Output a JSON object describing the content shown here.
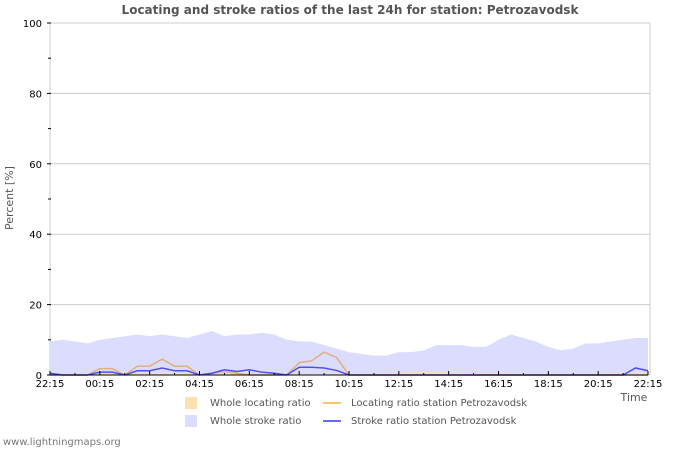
{
  "title": "Locating and stroke ratios of the last 24h for station: Petrozavodsk",
  "footer": "www.lightningmaps.org",
  "colors": {
    "whole_locating_fill": "#ffe0b0",
    "whole_stroke_fill": "#dcdcff",
    "locating_line": "#e0b080",
    "stroke_line": "#5050f0",
    "grid": "#cccccc"
  },
  "legend": [
    {
      "label": "Whole locating ratio",
      "type": "area",
      "color": "#ffe0b0"
    },
    {
      "label": "Locating ratio station Petrozavodsk",
      "type": "line",
      "color": "#f5c870"
    },
    {
      "label": "Whole stroke ratio",
      "type": "area",
      "color": "#dcdcff"
    },
    {
      "label": "Stroke ratio station Petrozavodsk",
      "type": "line",
      "color": "#6a6af0"
    }
  ],
  "chart_data": {
    "type": "area",
    "title": "Locating and stroke ratios of the last 24h for station: Petrozavodsk",
    "xlabel": "Time",
    "ylabel": "Percent   [%]",
    "ylim": [
      0,
      100
    ],
    "yticks": [
      0,
      20,
      40,
      60,
      80,
      100
    ],
    "xticks": [
      "22:15",
      "00:15",
      "02:15",
      "04:15",
      "06:15",
      "08:15",
      "10:15",
      "12:15",
      "14:15",
      "16:15",
      "18:15",
      "20:15",
      "22:15"
    ],
    "grid": true,
    "legend_position": "bottom",
    "x": [
      "22:15",
      "22:45",
      "23:15",
      "23:45",
      "00:15",
      "00:45",
      "01:15",
      "01:45",
      "02:15",
      "02:45",
      "03:15",
      "03:45",
      "04:15",
      "04:45",
      "05:15",
      "05:45",
      "06:15",
      "06:45",
      "07:15",
      "07:45",
      "08:15",
      "08:45",
      "09:15",
      "09:45",
      "10:15",
      "10:45",
      "11:15",
      "11:45",
      "12:15",
      "12:45",
      "13:15",
      "13:45",
      "14:15",
      "14:45",
      "15:15",
      "15:45",
      "16:15",
      "16:45",
      "17:15",
      "17:45",
      "18:15",
      "18:45",
      "19:15",
      "19:45",
      "20:15",
      "20:45",
      "21:15",
      "21:45",
      "22:15"
    ],
    "series": [
      {
        "name": "Whole stroke ratio",
        "values": [
          9.5,
          10,
          9.5,
          9,
          10,
          10.5,
          11,
          11.5,
          11,
          11.5,
          11,
          10.5,
          11.5,
          12.5,
          11,
          11.5,
          11.5,
          12,
          11.5,
          10,
          9.5,
          9.5,
          8.5,
          7.5,
          6.5,
          6,
          5.5,
          5.5,
          6.5,
          6.5,
          7,
          8.5,
          8.5,
          8.5,
          8,
          8,
          10,
          11.5,
          10.5,
          9.5,
          8,
          7,
          7.5,
          9,
          9,
          9.5,
          10,
          10.5,
          10.5
        ]
      },
      {
        "name": "Whole locating ratio",
        "values": [
          0.3,
          0.3,
          0.3,
          0.3,
          0.4,
          0.4,
          0.4,
          0.4,
          0.4,
          0.5,
          0.4,
          0.3,
          0.3,
          0.3,
          0.3,
          0.3,
          0.3,
          0.3,
          0.3,
          0.3,
          0.3,
          0.3,
          0.3,
          0.3,
          0.4,
          0.4,
          0.4,
          0.5,
          0.6,
          0.8,
          0.8,
          0.8,
          0.6,
          0.6,
          0.5,
          0.5,
          0.5,
          0.5,
          0.4,
          0.4,
          0.4,
          0.4,
          0.4,
          0.4,
          0.4,
          0.5,
          0.5,
          0.5,
          0.5
        ]
      },
      {
        "name": "Locating ratio station Petrozavodsk",
        "values": [
          0,
          0,
          0,
          0,
          1.8,
          1.8,
          0,
          2.5,
          2.5,
          4.5,
          2.5,
          2.5,
          0,
          0.5,
          1,
          0.5,
          0,
          0,
          0,
          0,
          3.5,
          4,
          6.5,
          5,
          0,
          0,
          0,
          0,
          0,
          0,
          0,
          0,
          0,
          0,
          0,
          0,
          0,
          0,
          0,
          0,
          0,
          0,
          0,
          0,
          0,
          0,
          0,
          0,
          0
        ]
      },
      {
        "name": "Stroke ratio station Petrozavodsk",
        "values": [
          0.5,
          0,
          0,
          0,
          0.8,
          0.8,
          0,
          1.2,
          1.2,
          2,
          1.2,
          1.2,
          0,
          0.5,
          1.5,
          1,
          1.5,
          0.8,
          0.5,
          0,
          2.2,
          2.2,
          2,
          1.3,
          0,
          0,
          0,
          0,
          0,
          0,
          0,
          0,
          0,
          0,
          0,
          0,
          0,
          0,
          0,
          0,
          0,
          0,
          0,
          0,
          0,
          0,
          0,
          2,
          1.2
        ]
      }
    ]
  }
}
